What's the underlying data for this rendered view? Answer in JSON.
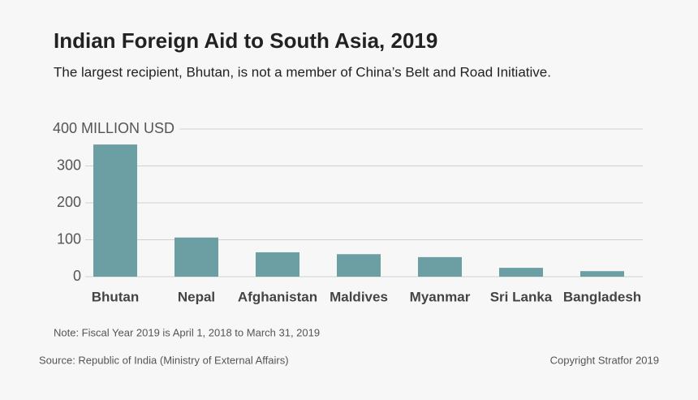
{
  "chart_data": {
    "type": "bar",
    "title": "Indian Foreign Aid to South Asia, 2019",
    "subtitle": "The largest recipient, Bhutan, is not a member of China’s Belt and Road Initiative.",
    "categories": [
      "Bhutan",
      "Nepal",
      "Afghanistan",
      "Maldives",
      "Myanmar",
      "Sri Lanka",
      "Bangladesh"
    ],
    "values": [
      358,
      106,
      66,
      61,
      53,
      24,
      15
    ],
    "color": "#6c9fa3",
    "ylim": [
      0,
      400
    ],
    "yticks": [
      0,
      100,
      200,
      300,
      {
        "value": 400,
        "label": "400 MILLION USD"
      }
    ],
    "grid": true,
    "note": "Note: Fiscal Year 2019 is April 1, 2018 to March 31, 2019",
    "source": "Source: Republic of India (Ministry of External Affairs)",
    "copyright": "Copyright Stratfor 2019"
  }
}
